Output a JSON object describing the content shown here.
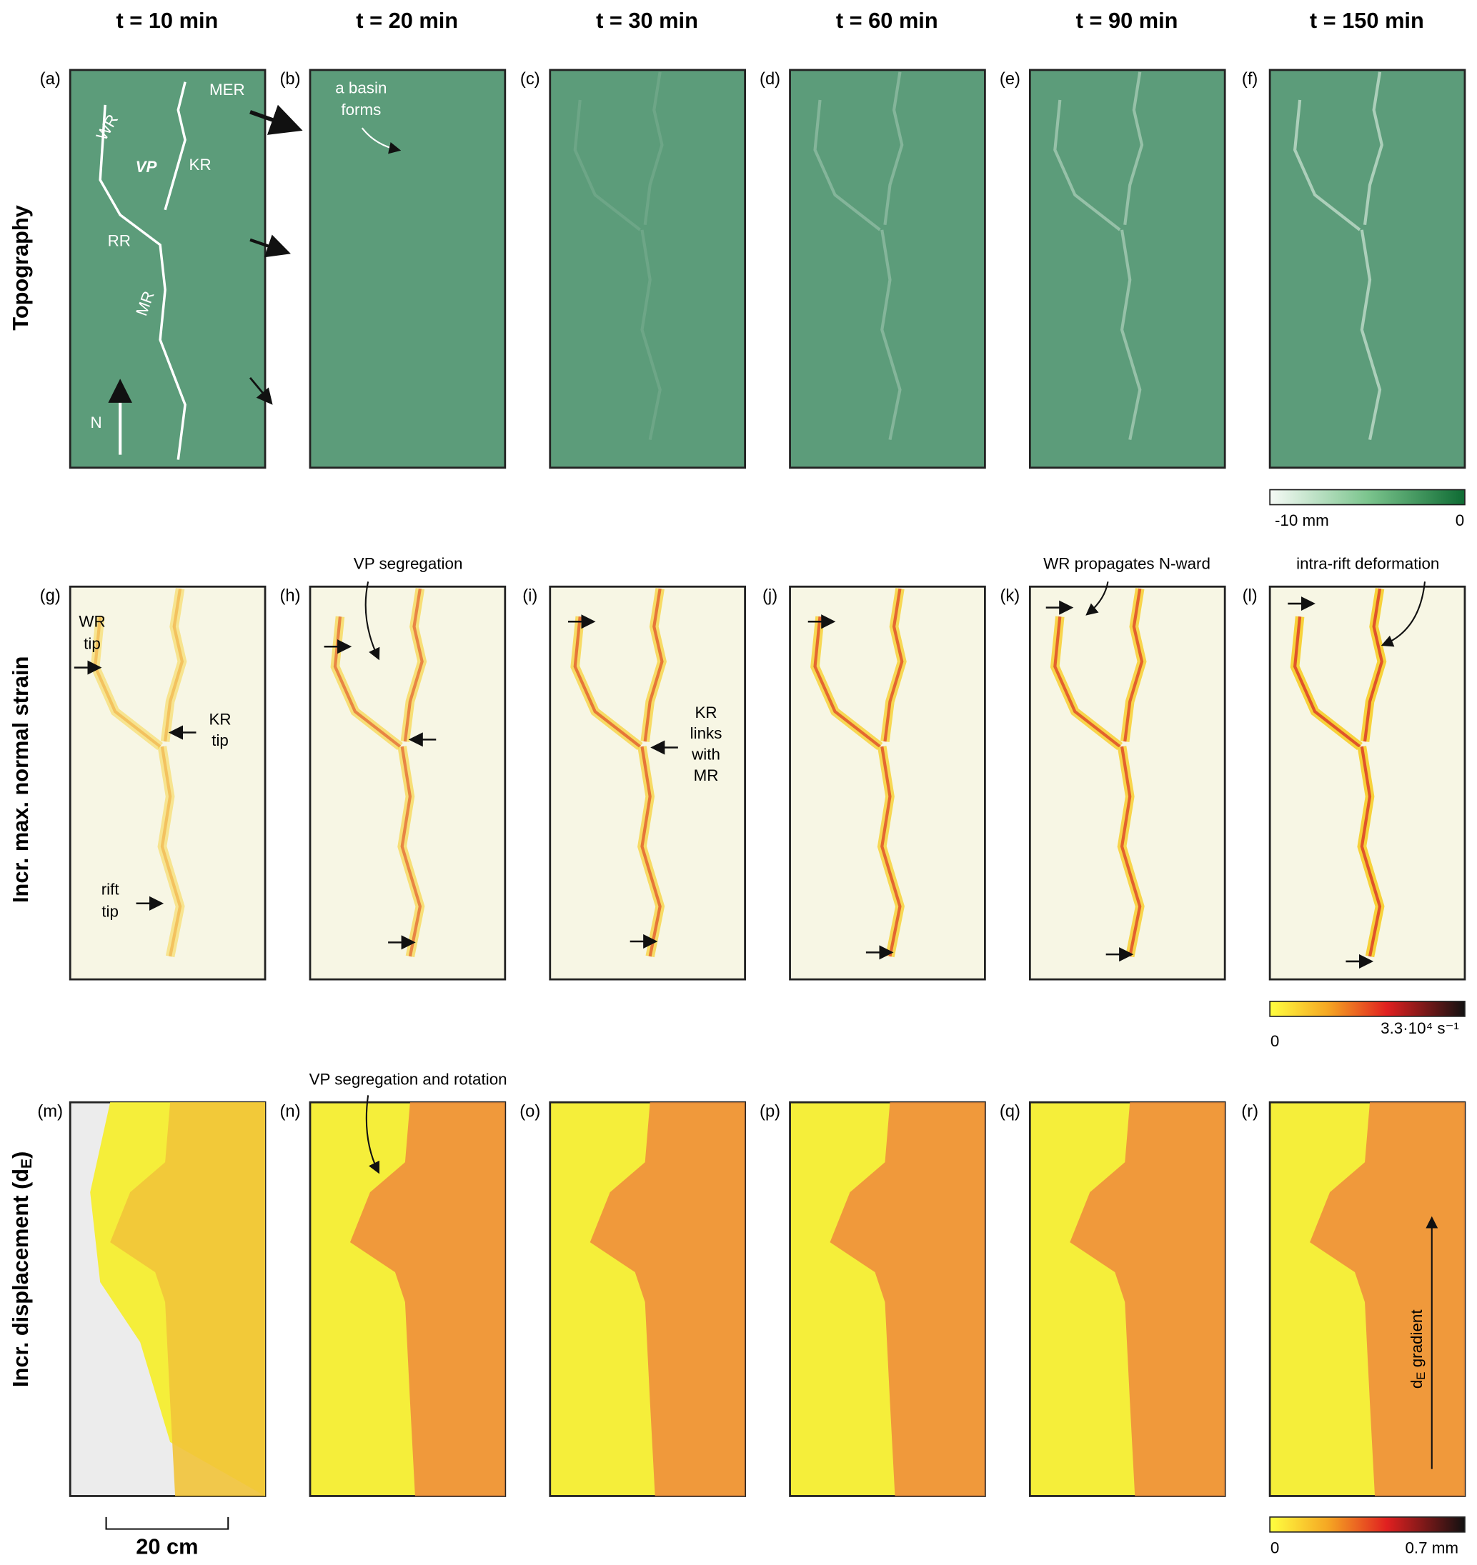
{
  "columns": [
    "t = 10 min",
    "t = 20 min",
    "t = 30 min",
    "t = 60 min",
    "t = 90 min",
    "t = 150 min"
  ],
  "rows": [
    {
      "title": "Topography",
      "panels": [
        "(a)",
        "(b)",
        "(c)",
        "(d)",
        "(e)",
        "(f)"
      ]
    },
    {
      "title": "Incr. max. normal strain",
      "panels": [
        "(g)",
        "(h)",
        "(i)",
        "(j)",
        "(k)",
        "(l)"
      ]
    },
    {
      "title": {
        "main": "Incr. displacement (d",
        "sub": "E",
        "end": ")"
      },
      "panels": [
        "(m)",
        "(n)",
        "(o)",
        "(p)",
        "(q)",
        "(r)"
      ]
    }
  ],
  "annotations": {
    "a": [
      "MER",
      "WR",
      "VP",
      "KR",
      "RR",
      "MR",
      "N"
    ],
    "b": [
      "a basin",
      "forms"
    ],
    "g": [
      "WR",
      "tip",
      "KR",
      "tip",
      "rift",
      "tip"
    ],
    "h": "VP segregation",
    "i": [
      "KR",
      "links",
      "with",
      "MR"
    ],
    "k": "WR propagates N-ward",
    "l": "intra-rift deformation",
    "n": "VP segregation and rotation",
    "r": {
      "main": "d",
      "sub": "E",
      "end": " gradient"
    }
  },
  "colorbars": [
    {
      "min": "-10 mm",
      "max": "0"
    },
    {
      "min": "0",
      "max": "3.3·10⁴ s⁻¹"
    },
    {
      "min": "0",
      "max": "0.7 mm"
    }
  ],
  "scale_bar": "20 cm"
}
